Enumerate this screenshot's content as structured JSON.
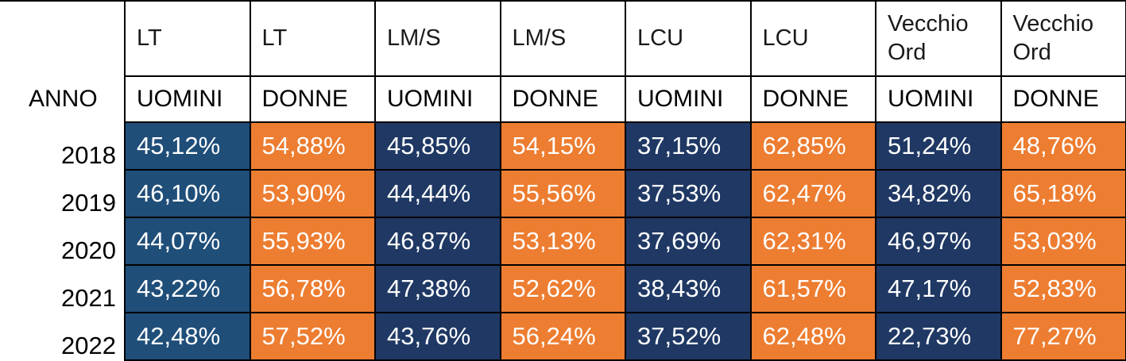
{
  "header": {
    "programs": [
      "LT",
      "LT",
      "LM/S",
      "LM/S",
      "LCU",
      "LCU",
      "Vecchio Ord",
      "Vecchio Ord"
    ],
    "year_label": "ANNO",
    "genders": [
      "UOMINI",
      "DONNE",
      "UOMINI",
      "DONNE",
      "UOMINI",
      "DONNE",
      "UOMINI",
      "DONNE"
    ]
  },
  "rows": [
    {
      "year": "2018",
      "values": [
        "45,12%",
        "54,88%",
        "45,85%",
        "54,15%",
        "37,15%",
        "62,85%",
        "51,24%",
        "48,76%"
      ]
    },
    {
      "year": "2019",
      "values": [
        "46,10%",
        "53,90%",
        "44,44%",
        "55,56%",
        "37,53%",
        "62,47%",
        "34,82%",
        "65,18%"
      ]
    },
    {
      "year": "2020",
      "values": [
        "44,07%",
        "55,93%",
        "46,87%",
        "53,13%",
        "37,69%",
        "62,31%",
        "46,97%",
        "53,03%"
      ]
    },
    {
      "year": "2021",
      "values": [
        "43,22%",
        "56,78%",
        "47,38%",
        "52,62%",
        "38,43%",
        "61,57%",
        "47,17%",
        "52,83%"
      ]
    },
    {
      "year": "2022",
      "values": [
        "42,48%",
        "57,52%",
        "43,76%",
        "56,24%",
        "37,52%",
        "62,48%",
        "22,73%",
        "77,27%"
      ]
    }
  ],
  "colors": {
    "lt_men": "#1f4e79",
    "other_men": "#1f3864",
    "women": "#ed7d31"
  }
}
